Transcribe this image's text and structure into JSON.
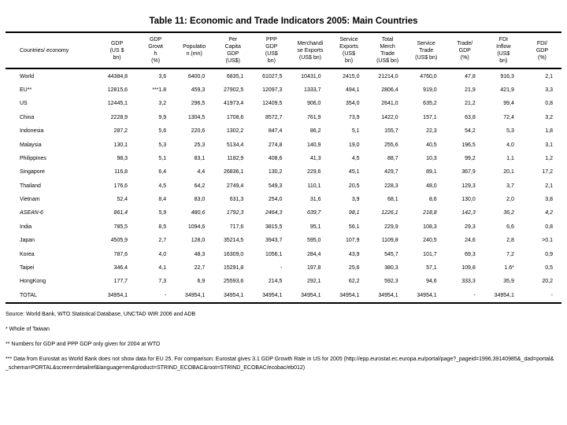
{
  "title": "Table 11: Economic and Trade Indicators 2005: Main Countries",
  "table": {
    "columns": [
      {
        "key": "country",
        "label": "Countries/ economy"
      },
      {
        "key": "gdp",
        "label": "GDP\n(US $\nbn)"
      },
      {
        "key": "gdp-growth",
        "label": "GDP\nGrowt\nh\n(%)"
      },
      {
        "key": "population",
        "label": "Populatio\nn (mn)"
      },
      {
        "key": "per-capita-gdp",
        "label": "Per\nCapita\nGDP\n(US$)"
      },
      {
        "key": "ppp-gdp",
        "label": "PPP\nGDP\n(US$\nbn)"
      },
      {
        "key": "merchandise-exports",
        "label": "Merchandi\nse Exports\n(US$ bn)"
      },
      {
        "key": "service-exports",
        "label": "Service\nExports\n(US$\nbn)"
      },
      {
        "key": "total-merch-trade",
        "label": "Total\nMerch\nTrade\n(US$ bn)"
      },
      {
        "key": "service-trade",
        "label": "Service\nTrade\n(US$ bn)"
      },
      {
        "key": "trade-gdp",
        "label": "Trade/\nGDP\n(%)"
      },
      {
        "key": "fdi-inflow",
        "label": "FDI\nInflow\n(US$\nbn)"
      },
      {
        "key": "fdi-gdp",
        "label": "FDI/\nGDP\n(%)"
      }
    ],
    "rows": [
      {
        "cells": [
          "World",
          "44384,8",
          "3,6",
          "6400,0",
          "6835,1",
          "61027,5",
          "10431,0",
          "2415,0",
          "21214,0",
          "4760,0",
          "47,8",
          "916,3",
          "2,1"
        ]
      },
      {
        "cells": [
          "EU**",
          "12815,6",
          "***1.8",
          "459,3",
          "27902,5",
          "12097,3",
          "1333,7",
          "494,1",
          "2806,4",
          "919,0",
          "21,9",
          "421,9",
          "3,3"
        ]
      },
      {
        "cells": [
          "US",
          "12445,1",
          "3,2",
          "296,5",
          "41973,4",
          "12409,5",
          "906,0",
          "354,0",
          "2641,0",
          "635,2",
          "21,2",
          "99,4",
          "0,8"
        ]
      },
      {
        "cells": [
          "China",
          "2228,9",
          "9,9",
          "1304,5",
          "1708,6",
          "8572,7",
          "761,9",
          "73,9",
          "1422,0",
          "157,1",
          "63,8",
          "72,4",
          "3,2"
        ]
      },
      {
        "cells": [
          "Indonesia",
          "287,2",
          "5,6",
          "220,6",
          "1302,2",
          "847,4",
          "86,2",
          "5,1",
          "155,7",
          "22,3",
          "54,2",
          "5,3",
          "1,8"
        ]
      },
      {
        "cells": [
          "Malaysia",
          "130,1",
          "5,3",
          "25,3",
          "5134,4",
          "274,8",
          "140,9",
          "19,0",
          "255,6",
          "40,5",
          "196,5",
          "4,0",
          "3,1"
        ]
      },
      {
        "cells": [
          "Philippines",
          "98,3",
          "5,1",
          "83,1",
          "1182,9",
          "408,6",
          "41,3",
          "4,5",
          "88,7",
          "10,3",
          "99,2",
          "1,1",
          "1,2"
        ]
      },
      {
        "cells": [
          "Singapore",
          "116,8",
          "6,4",
          "4,4",
          "26836,1",
          "130,2",
          "229,6",
          "45,1",
          "429,7",
          "89,1",
          "367,9",
          "20,1",
          "17,2"
        ]
      },
      {
        "cells": [
          "Thailand",
          "176,6",
          "4,5",
          "64,2",
          "2749,4",
          "549,3",
          "110,1",
          "20,5",
          "228,3",
          "48,0",
          "129,3",
          "3,7",
          "2,1"
        ]
      },
      {
        "cells": [
          "Vietnam",
          "52,4",
          "8,4",
          "83,0",
          "631,3",
          "254,0",
          "31,6",
          "3,9",
          "68,1",
          "8,6",
          "130,0",
          "2,0",
          "3,8"
        ]
      },
      {
        "italic": true,
        "cells": [
          "ASEAN-6",
          "861,4",
          "5,9",
          "480,6",
          "1792,3",
          "2464,3",
          "639,7",
          "98,1",
          "1226,1",
          "218,8",
          "142,3",
          "36,2",
          "4,2"
        ]
      },
      {
        "cells": [
          "India",
          "785,5",
          "8,5",
          "1094,6",
          "717,6",
          "3815,5",
          "95,1",
          "56,1",
          "229,9",
          "108,3",
          "29,3",
          "6,6",
          "0,8"
        ]
      },
      {
        "cells": [
          "Japan",
          "4505,9",
          "2,7",
          "128,0",
          "35214,5",
          "3943,7",
          "595,0",
          "107,9",
          "1109,8",
          "240,5",
          "24,6",
          "2,8",
          ">0.1"
        ]
      },
      {
        "cells": [
          "Korea",
          "787,6",
          "4,0",
          "48,3",
          "16309,0",
          "1056,1",
          "284,4",
          "43,9",
          "545,7",
          "101,7",
          "69,3",
          "7,2",
          "0,9"
        ]
      },
      {
        "cells": [
          "Taipei",
          "346,4",
          "4,1",
          "22,7",
          "15291,8",
          "-",
          "197,8",
          "25,6",
          "380,3",
          "57,1",
          "109,8",
          "1.6*",
          "0,5"
        ]
      },
      {
        "cells": [
          "HongKong",
          "177,7",
          "7,3",
          "6,9",
          "25593,6",
          "214,5",
          "292,1",
          "62,2",
          "592,3",
          "94,6",
          "333,3",
          "35,9",
          "20,2"
        ]
      },
      {
        "cells": [
          "TOTAL",
          "34954,1",
          "-",
          "34954,1",
          "34954,1",
          "34954,1",
          "34954,1",
          "34954,1",
          "34954,1",
          "34954,1",
          "-",
          "34954,1",
          "-"
        ]
      }
    ]
  },
  "footnotes": {
    "source": "Source: World Bank, WTO Statistical Database, UNCTAD WIR 2006 and ADB",
    "note_taiwan": "* Whole of Taiwan",
    "note_wto": "** Numbers for GDP and PPP GDP only given for 2004 at WTO",
    "note_eurostat": "*** Data from Eurostat as World Bank does not show data for EU 25. For comparison: Eurostat gives 3.1 GDP Growth Rate in US for 2005 (http://epp.eurostat.ec.europa.eu/portal/page?_pageid=1996,39140985&_dad=portal&_schema=PORTAL&screen=detailref&language=en&product=STRIND_ECOBAC&root=STRIND_ECOBAC/ecobac/eb012)"
  }
}
